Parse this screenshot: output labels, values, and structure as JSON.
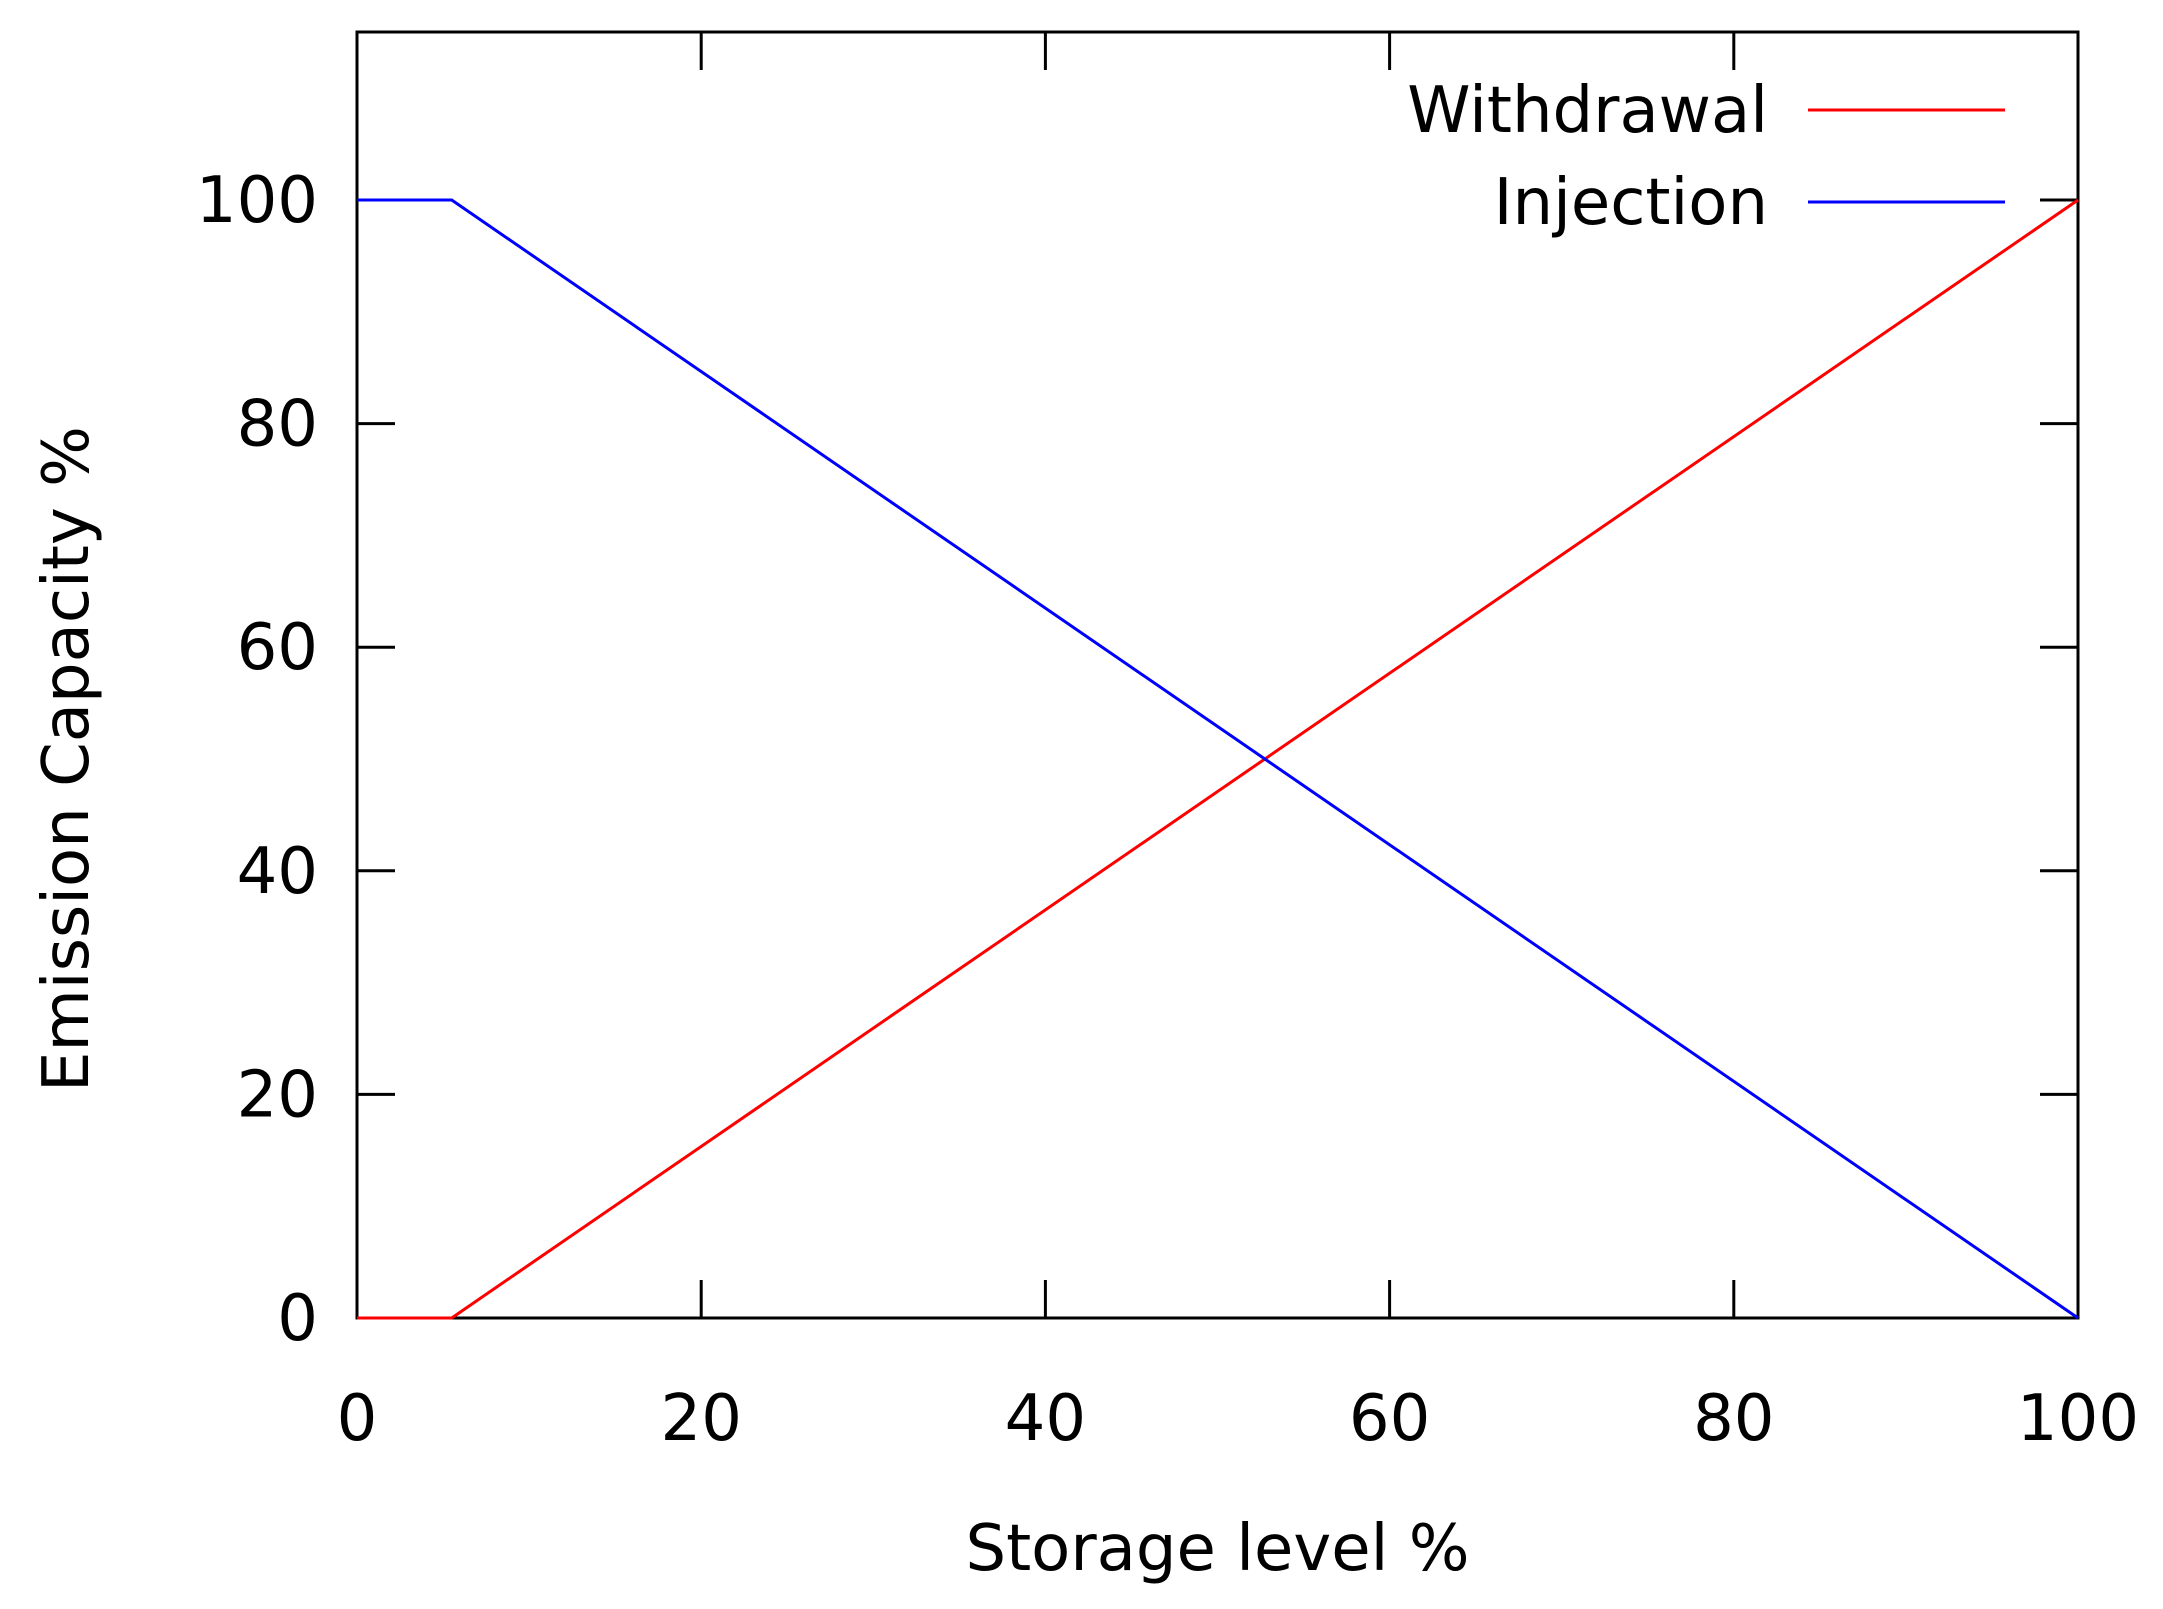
{
  "chart_data": {
    "type": "line",
    "title": "",
    "xlabel": "Storage level %",
    "ylabel": "Emission Capacity %",
    "xlim": [
      0,
      100
    ],
    "ylim": [
      0,
      100
    ],
    "xticks": [
      0,
      20,
      40,
      60,
      80,
      100
    ],
    "yticks": [
      0,
      20,
      40,
      60,
      80,
      100
    ],
    "grid": false,
    "zero_line": "dotted",
    "legend": {
      "position": "top-right"
    },
    "series": [
      {
        "name": "Withdrawal",
        "color": "#ff0000",
        "x": [
          0,
          5.5,
          100
        ],
        "y": [
          0,
          0,
          100
        ]
      },
      {
        "name": "Injection",
        "color": "#0000ff",
        "x": [
          0,
          5.5,
          100
        ],
        "y": [
          100,
          100,
          0
        ]
      }
    ]
  }
}
